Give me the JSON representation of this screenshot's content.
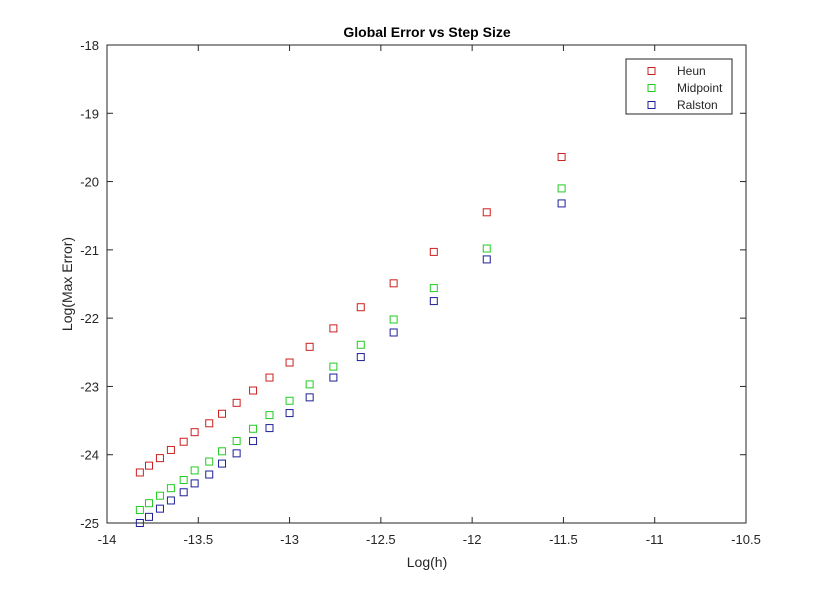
{
  "chart_data": {
    "type": "scatter",
    "title": "Global Error vs Step Size",
    "xlabel": "Log(h)",
    "ylabel": "Log(Max Error)",
    "xlim": [
      -14,
      -10.5
    ],
    "ylim": [
      -25,
      -18
    ],
    "xticks": [
      -14,
      -13.5,
      -13,
      -12.5,
      -12,
      -11.5,
      -11,
      -10.5
    ],
    "xtick_labels": [
      "-14",
      "-13.5",
      "-13",
      "-12.5",
      "-12",
      "-11.5",
      "-11",
      "-10.5"
    ],
    "yticks": [
      -25,
      -24,
      -23,
      -22,
      -21,
      -20,
      -19,
      -18
    ],
    "ytick_labels": [
      "-25",
      "-24",
      "-23",
      "-22",
      "-21",
      "-20",
      "-19",
      "-18"
    ],
    "grid": false,
    "legend_position": "top-right",
    "marker": "square",
    "x": [
      -13.82,
      -13.77,
      -13.71,
      -13.65,
      -13.58,
      -13.52,
      -13.44,
      -13.37,
      -13.29,
      -13.2,
      -13.11,
      -13.0,
      -12.89,
      -12.76,
      -12.61,
      -12.43,
      -12.21,
      -11.92,
      -11.51
    ],
    "series": [
      {
        "name": "Heun",
        "color": "#cc1f1f",
        "values": [
          -24.26,
          -24.16,
          -24.05,
          -23.93,
          -23.81,
          -23.67,
          -23.54,
          -23.4,
          -23.24,
          -23.06,
          -22.87,
          -22.65,
          -22.42,
          -22.15,
          -21.84,
          -21.49,
          -21.03,
          -20.45,
          -19.64
        ]
      },
      {
        "name": "Midpoint",
        "color": "#22cc22",
        "values": [
          -24.81,
          -24.71,
          -24.6,
          -24.49,
          -24.37,
          -24.23,
          -24.1,
          -23.95,
          -23.8,
          -23.62,
          -23.42,
          -23.21,
          -22.97,
          -22.71,
          -22.39,
          -22.02,
          -21.56,
          -20.98,
          -20.1
        ]
      },
      {
        "name": "Ralston",
        "color": "#1f1f99",
        "values": [
          -25.0,
          -24.91,
          -24.79,
          -24.67,
          -24.55,
          -24.42,
          -24.29,
          -24.13,
          -23.98,
          -23.8,
          -23.61,
          -23.39,
          -23.16,
          -22.87,
          -22.57,
          -22.21,
          -21.75,
          -21.14,
          -20.32
        ]
      }
    ]
  }
}
